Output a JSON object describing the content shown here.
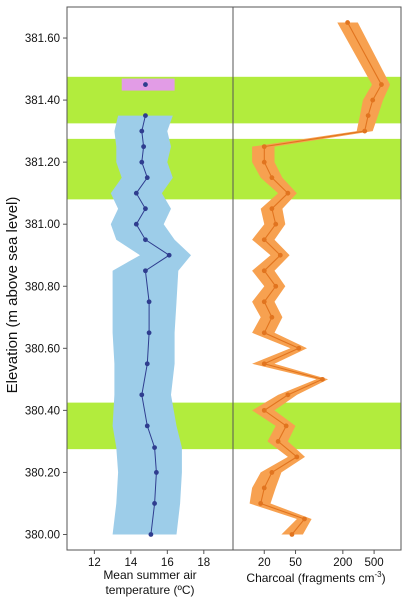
{
  "chart_data": {
    "type": "line",
    "ylabel": "Elevation (m above sea level)",
    "ylim": [
      379.95,
      381.7
    ],
    "y_ticks": [
      "380.00",
      "380.20",
      "380.40",
      "380.60",
      "380.80",
      "381.00",
      "381.20",
      "381.40",
      "381.60"
    ],
    "highlight_bands": [
      {
        "y_from": 380.275,
        "y_to": 380.425
      },
      {
        "y_from": 381.08,
        "y_to": 381.275
      },
      {
        "y_from": 381.325,
        "y_to": 381.475
      }
    ],
    "colors": {
      "band": "#b2ec3d",
      "temperature_band": "#9dcde9",
      "temperature_line": "#2f3d8f",
      "outlier_box": "#e29ce6",
      "charcoal_band": "#f7a150",
      "charcoal_line": "#e1741f",
      "axis": "#555555"
    },
    "panels": [
      {
        "id": "temperature",
        "xlabel": "Mean summer air temperature (ºC)",
        "xlabel_lines": [
          "Mean summer air",
          "temperature (ºC)"
        ],
        "xlim": [
          10.5,
          19.6
        ],
        "x_ticks": [
          "12",
          "14",
          "16",
          "18"
        ],
        "series": [
          {
            "points": [
              {
                "y": 380.0,
                "x": 15.1,
                "lo": 13.0,
                "hi": 16.5
              },
              {
                "y": 380.1,
                "x": 15.3,
                "lo": 13.2,
                "hi": 16.7
              },
              {
                "y": 380.2,
                "x": 15.4,
                "lo": 13.3,
                "hi": 16.8
              },
              {
                "y": 380.28,
                "x": 15.3,
                "lo": 13.2,
                "hi": 16.8
              },
              {
                "y": 380.35,
                "x": 14.9,
                "lo": 13.0,
                "hi": 16.5
              },
              {
                "y": 380.45,
                "x": 14.6,
                "lo": 13.1,
                "hi": 16.2
              },
              {
                "y": 380.55,
                "x": 14.9,
                "lo": 13.1,
                "hi": 16.4
              },
              {
                "y": 380.65,
                "x": 15.0,
                "lo": 13.0,
                "hi": 16.4
              },
              {
                "y": 380.75,
                "x": 15.0,
                "lo": 13.0,
                "hi": 16.5
              },
              {
                "y": 380.85,
                "x": 14.8,
                "lo": 13.0,
                "hi": 16.6
              },
              {
                "y": 380.9,
                "x": 16.1,
                "lo": 14.5,
                "hi": 17.3
              },
              {
                "y": 380.95,
                "x": 14.8,
                "lo": 13.2,
                "hi": 16.4
              },
              {
                "y": 381.0,
                "x": 14.3,
                "lo": 12.9,
                "hi": 15.8
              },
              {
                "y": 381.05,
                "x": 14.8,
                "lo": 13.3,
                "hi": 16.2
              },
              {
                "y": 381.1,
                "x": 14.3,
                "lo": 12.9,
                "hi": 15.7
              },
              {
                "y": 381.15,
                "x": 14.9,
                "lo": 13.5,
                "hi": 16.3
              },
              {
                "y": 381.2,
                "x": 14.6,
                "lo": 13.2,
                "hi": 16.0
              },
              {
                "y": 381.25,
                "x": 14.7,
                "lo": 13.2,
                "hi": 16.2
              },
              {
                "y": 381.3,
                "x": 14.6,
                "lo": 13.1,
                "hi": 16.0
              },
              {
                "y": 381.35,
                "x": 14.8,
                "lo": 13.3,
                "hi": 16.3
              }
            ],
            "isolated_point": {
              "y": 381.45,
              "x": 14.8,
              "lo": 13.5,
              "hi": 16.4
            }
          }
        ]
      },
      {
        "id": "charcoal",
        "xlabel": "Charcoal (fragments cm⁻³)",
        "xlabel_main": "Charcoal (fragments cm",
        "xlabel_sup": "-3",
        "xlabel_tail": ")",
        "x_scale": "log",
        "xlim": [
          8,
          1100
        ],
        "x_ticks": [
          20,
          50,
          200,
          500
        ],
        "series": [
          {
            "points": [
              {
                "y": 380.0,
                "x": 45,
                "lo": 33,
                "hi": 62
              },
              {
                "y": 380.05,
                "x": 65,
                "lo": 52,
                "hi": 80
              },
              {
                "y": 380.1,
                "x": 18,
                "lo": 13,
                "hi": 24
              },
              {
                "y": 380.15,
                "x": 20,
                "lo": 14,
                "hi": 28
              },
              {
                "y": 380.2,
                "x": 25,
                "lo": 18,
                "hi": 33
              },
              {
                "y": 380.25,
                "x": 52,
                "lo": 40,
                "hi": 66
              },
              {
                "y": 380.3,
                "x": 30,
                "lo": 22,
                "hi": 40
              },
              {
                "y": 380.35,
                "x": 38,
                "lo": 28,
                "hi": 50
              },
              {
                "y": 380.4,
                "x": 20,
                "lo": 14,
                "hi": 27
              },
              {
                "y": 380.45,
                "x": 40,
                "lo": 30,
                "hi": 52
              },
              {
                "y": 380.5,
                "x": 110,
                "lo": 92,
                "hi": 130
              },
              {
                "y": 380.55,
                "x": 20,
                "lo": 14,
                "hi": 27
              },
              {
                "y": 380.6,
                "x": 55,
                "lo": 43,
                "hi": 70
              },
              {
                "y": 380.65,
                "x": 20,
                "lo": 14,
                "hi": 27
              },
              {
                "y": 380.7,
                "x": 25,
                "lo": 18,
                "hi": 34
              },
              {
                "y": 380.75,
                "x": 20,
                "lo": 14,
                "hi": 27
              },
              {
                "y": 380.8,
                "x": 28,
                "lo": 20,
                "hi": 37
              },
              {
                "y": 380.85,
                "x": 20,
                "lo": 14,
                "hi": 27
              },
              {
                "y": 380.9,
                "x": 32,
                "lo": 24,
                "hi": 42
              },
              {
                "y": 380.95,
                "x": 20,
                "lo": 14,
                "hi": 27
              },
              {
                "y": 381.0,
                "x": 28,
                "lo": 20,
                "hi": 37
              },
              {
                "y": 381.05,
                "x": 25,
                "lo": 18,
                "hi": 34
              },
              {
                "y": 381.1,
                "x": 40,
                "lo": 30,
                "hi": 52
              },
              {
                "y": 381.15,
                "x": 25,
                "lo": 18,
                "hi": 34
              },
              {
                "y": 381.2,
                "x": 20,
                "lo": 14,
                "hi": 27
              },
              {
                "y": 381.25,
                "x": 20,
                "lo": 14,
                "hi": 27
              },
              {
                "y": 381.3,
                "x": 380,
                "lo": 300,
                "hi": 480
              },
              {
                "y": 381.35,
                "x": 420,
                "lo": 330,
                "hi": 560
              },
              {
                "y": 381.4,
                "x": 480,
                "lo": 360,
                "hi": 650
              },
              {
                "y": 381.45,
                "x": 620,
                "lo": 470,
                "hi": 800
              },
              {
                "y": 381.65,
                "x": 230,
                "lo": 170,
                "hi": 310
              }
            ]
          }
        ]
      }
    ]
  }
}
